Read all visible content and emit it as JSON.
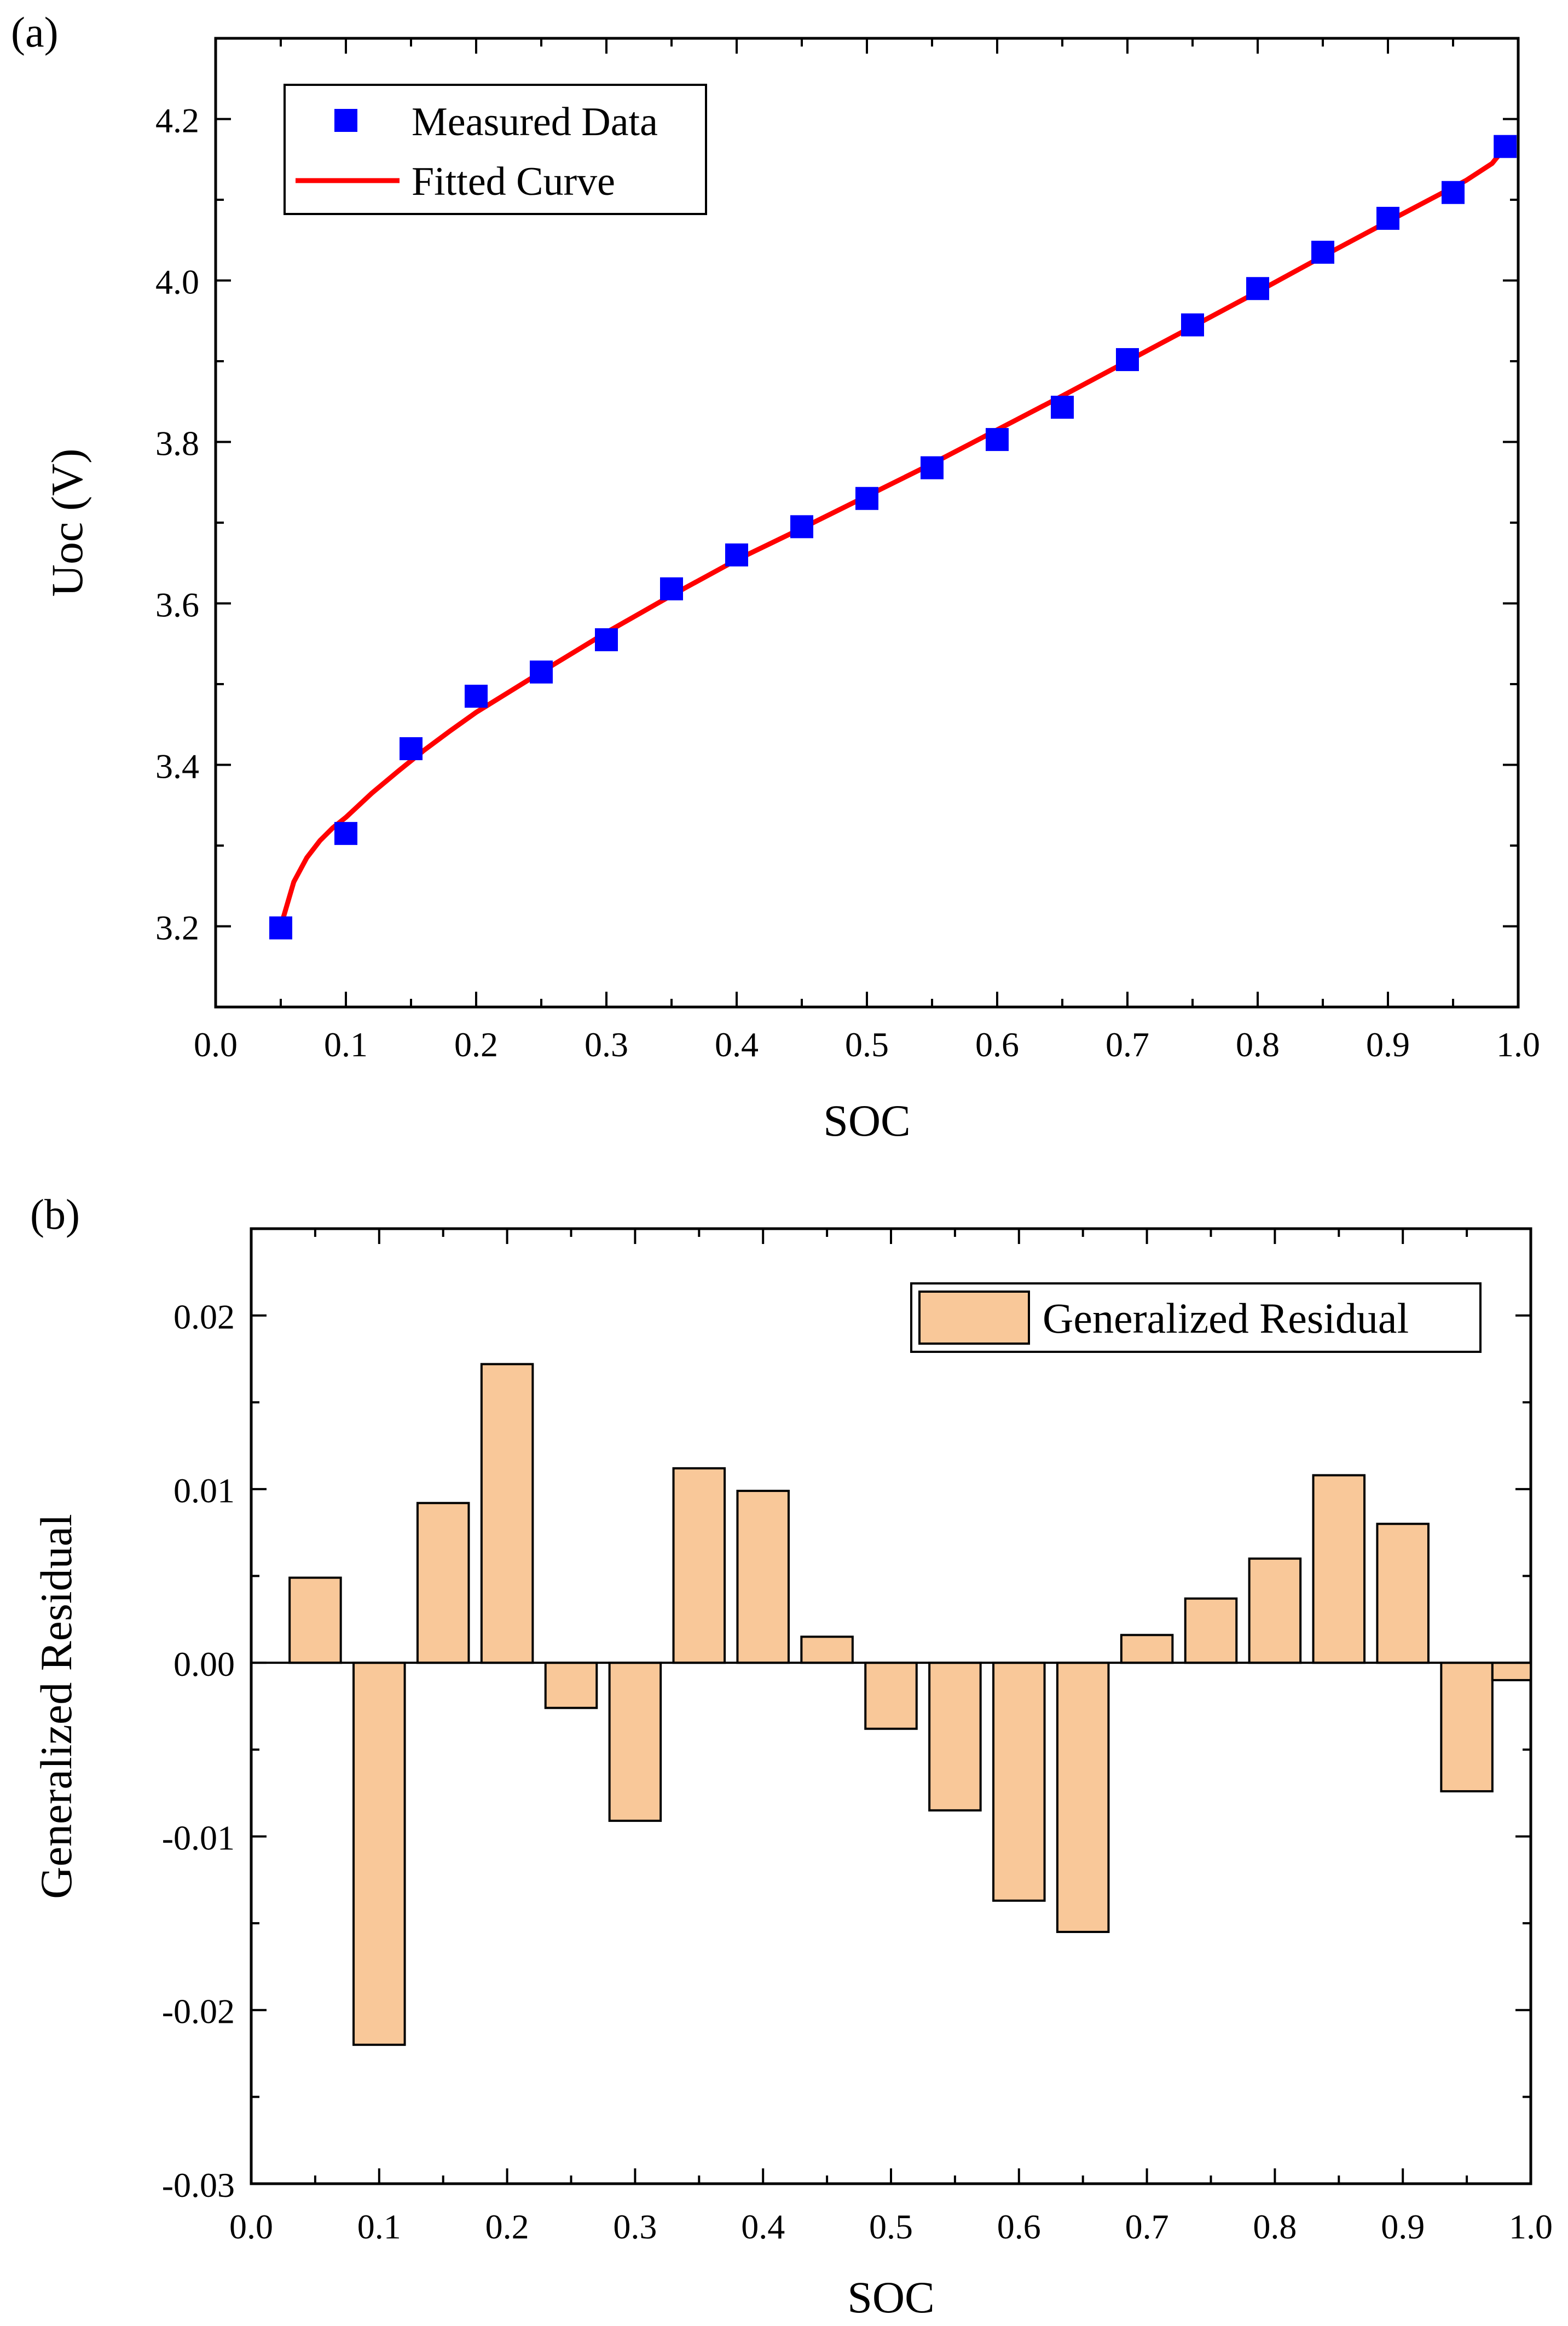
{
  "colors": {
    "marker": "#0000ff",
    "fit_line": "#ff0000",
    "bar_fill": "#f9c899",
    "axis": "#000000"
  },
  "chart_data": [
    {
      "panel_label": "(a)",
      "type": "scatter",
      "title": "",
      "xlabel": "SOC",
      "ylabel": "Uoc (V)",
      "xlim": [
        0.0,
        1.0
      ],
      "ylim": [
        3.1,
        4.3
      ],
      "xticks": [
        "0.0",
        "0.1",
        "0.2",
        "0.3",
        "0.4",
        "0.5",
        "0.6",
        "0.7",
        "0.8",
        "0.9",
        "1.0"
      ],
      "yticks": [
        "3.2",
        "3.4",
        "3.6",
        "3.8",
        "4.0",
        "4.2"
      ],
      "legend": {
        "location": "top-left",
        "entries": [
          "Measured Data",
          "Fitted Curve"
        ]
      },
      "series": [
        {
          "name": "Measured Data",
          "kind": "scatter",
          "marker": "square",
          "x": [
            0.05,
            0.1,
            0.15,
            0.2,
            0.25,
            0.3,
            0.35,
            0.4,
            0.45,
            0.5,
            0.55,
            0.6,
            0.65,
            0.7,
            0.75,
            0.8,
            0.85,
            0.9,
            0.95,
            0.99
          ],
          "y": [
            3.198,
            3.315,
            3.42,
            3.485,
            3.515,
            3.555,
            3.618,
            3.66,
            3.695,
            3.73,
            3.768,
            3.803,
            3.843,
            3.902,
            3.945,
            3.99,
            4.035,
            4.077,
            4.109,
            4.166
          ]
        },
        {
          "name": "Fitted Curve",
          "kind": "line",
          "x": [
            0.05,
            0.06,
            0.07,
            0.08,
            0.09,
            0.1,
            0.12,
            0.14,
            0.16,
            0.18,
            0.2,
            0.25,
            0.3,
            0.35,
            0.4,
            0.45,
            0.5,
            0.55,
            0.6,
            0.65,
            0.7,
            0.75,
            0.8,
            0.85,
            0.9,
            0.94,
            0.96,
            0.98,
            0.99
          ],
          "y": [
            3.2,
            3.255,
            3.285,
            3.306,
            3.322,
            3.335,
            3.365,
            3.392,
            3.418,
            3.442,
            3.465,
            3.515,
            3.564,
            3.61,
            3.654,
            3.693,
            3.733,
            3.773,
            3.815,
            3.857,
            3.9,
            3.943,
            3.986,
            4.03,
            4.073,
            4.107,
            4.124,
            4.145,
            4.165
          ]
        }
      ]
    },
    {
      "panel_label": "(b)",
      "type": "bar",
      "title": "",
      "xlabel": "SOC",
      "ylabel": "Generalized Residual",
      "xlim": [
        0.0,
        1.0
      ],
      "ylim": [
        -0.03,
        0.025
      ],
      "xticks": [
        "0.0",
        "0.1",
        "0.2",
        "0.3",
        "0.4",
        "0.5",
        "0.6",
        "0.7",
        "0.8",
        "0.9",
        "1.0"
      ],
      "yticks": [
        "-0.03",
        "-0.02",
        "-0.01",
        "0.00",
        "0.01",
        "0.02"
      ],
      "legend": {
        "location": "top-right",
        "entries": [
          "Generalized Residual"
        ]
      },
      "series": [
        {
          "name": "Generalized Residual",
          "x": [
            0.05,
            0.1,
            0.15,
            0.2,
            0.25,
            0.3,
            0.35,
            0.4,
            0.45,
            0.5,
            0.55,
            0.6,
            0.65,
            0.7,
            0.75,
            0.8,
            0.85,
            0.9,
            0.95,
            0.99
          ],
          "values": [
            0.0049,
            -0.022,
            0.0092,
            0.0172,
            -0.0026,
            -0.0091,
            0.0112,
            0.0099,
            0.0015,
            -0.0038,
            -0.0085,
            -0.0137,
            -0.0155,
            0.0016,
            0.0037,
            0.006,
            0.0108,
            0.008,
            -0.0074,
            -0.001
          ]
        }
      ]
    }
  ]
}
